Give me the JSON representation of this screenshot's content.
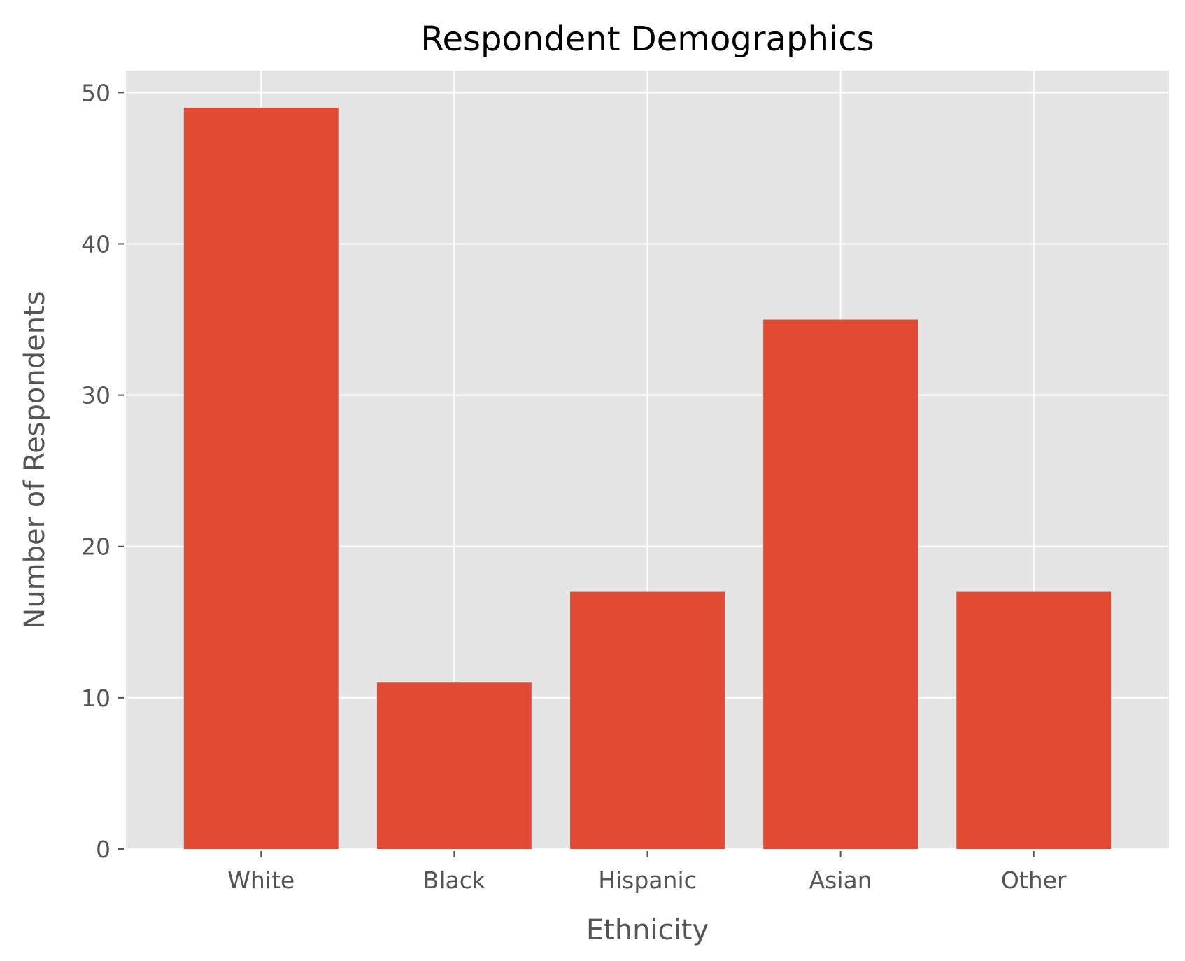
{
  "chart_data": {
    "type": "bar",
    "title": "Respondent Demographics",
    "xlabel": "Ethnicity",
    "ylabel": "Number of Respondents",
    "categories": [
      "White",
      "Black",
      "Hispanic",
      "Asian",
      "Other"
    ],
    "values": [
      49,
      11,
      17,
      35,
      17
    ],
    "ylim": [
      0,
      51.45
    ],
    "yticks": [
      0,
      10,
      20,
      30,
      40,
      50
    ],
    "grid": true,
    "bar_color": "#E24A33",
    "background_color": "#E5E5E5",
    "grid_color": "#FFFFFF"
  }
}
